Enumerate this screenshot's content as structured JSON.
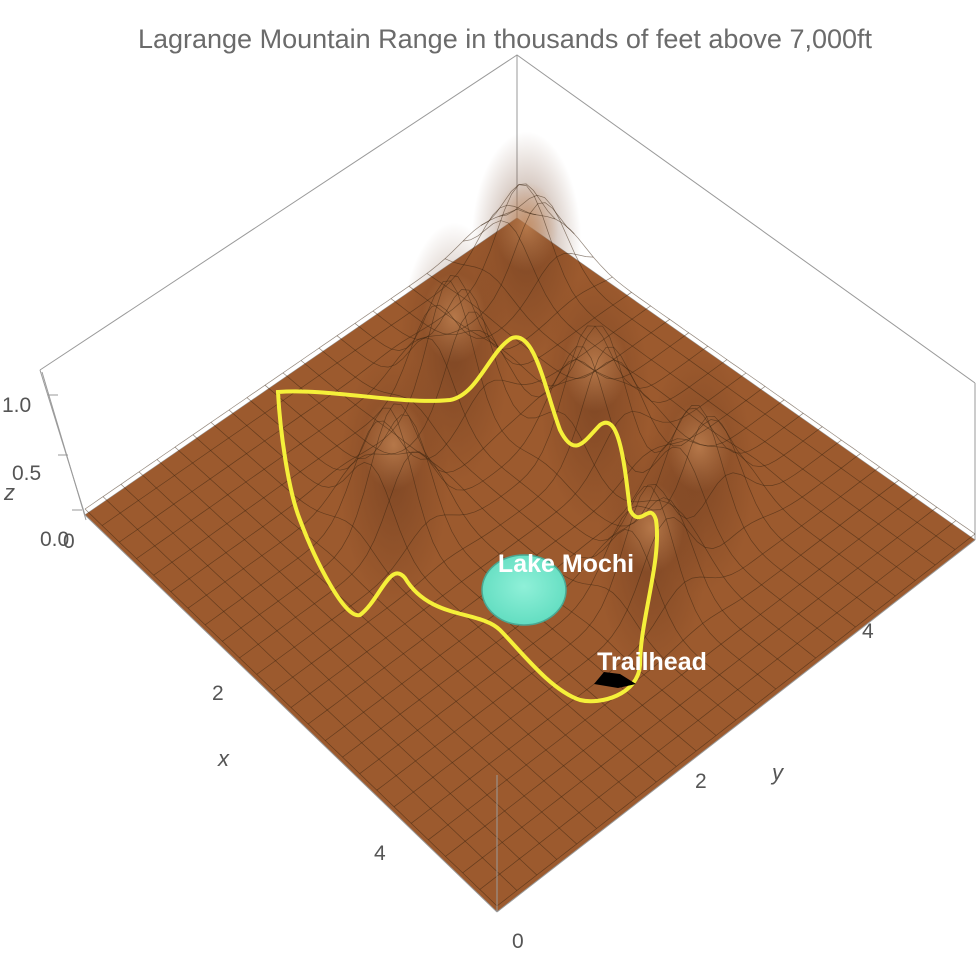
{
  "chart_data": {
    "type": "surface3d",
    "title": "Lagrange Mountain Range in thousands of feet above 7,000ft",
    "xlabel": "x",
    "ylabel": "y",
    "zlabel": "z",
    "xlim": [
      0,
      6
    ],
    "ylim": [
      0,
      6
    ],
    "zlim": [
      0,
      1.25
    ],
    "x_ticks": [
      "0",
      "2",
      "4"
    ],
    "y_ticks": [
      "0",
      "2",
      "4"
    ],
    "z_ticks": [
      "0.0",
      "0.5",
      "1.0"
    ],
    "surface_color": "#9c5a2e",
    "contour_color": "#f5f03a",
    "peaks": [
      {
        "x": 2.2,
        "y": 1.3,
        "z": 1.0
      },
      {
        "x": 1.6,
        "y": 2.6,
        "z": 0.95
      },
      {
        "x": 1.5,
        "y": 3.9,
        "z": 0.85
      },
      {
        "x": 2.5,
        "y": 4.3,
        "z": 0.85
      },
      {
        "x": 3.7,
        "y": 2.0,
        "z": 0.95
      },
      {
        "x": 0.5,
        "y": 0.6,
        "z": 0.7
      }
    ],
    "annotations": [
      {
        "label": "Lake Mochi",
        "x": 2.7,
        "y": 2.4,
        "z": 0.25,
        "color": "#6ee6c8"
      },
      {
        "label": "Trailhead",
        "x": 3.3,
        "y": 3.2,
        "z": 0.2,
        "color": "#000000"
      }
    ]
  }
}
